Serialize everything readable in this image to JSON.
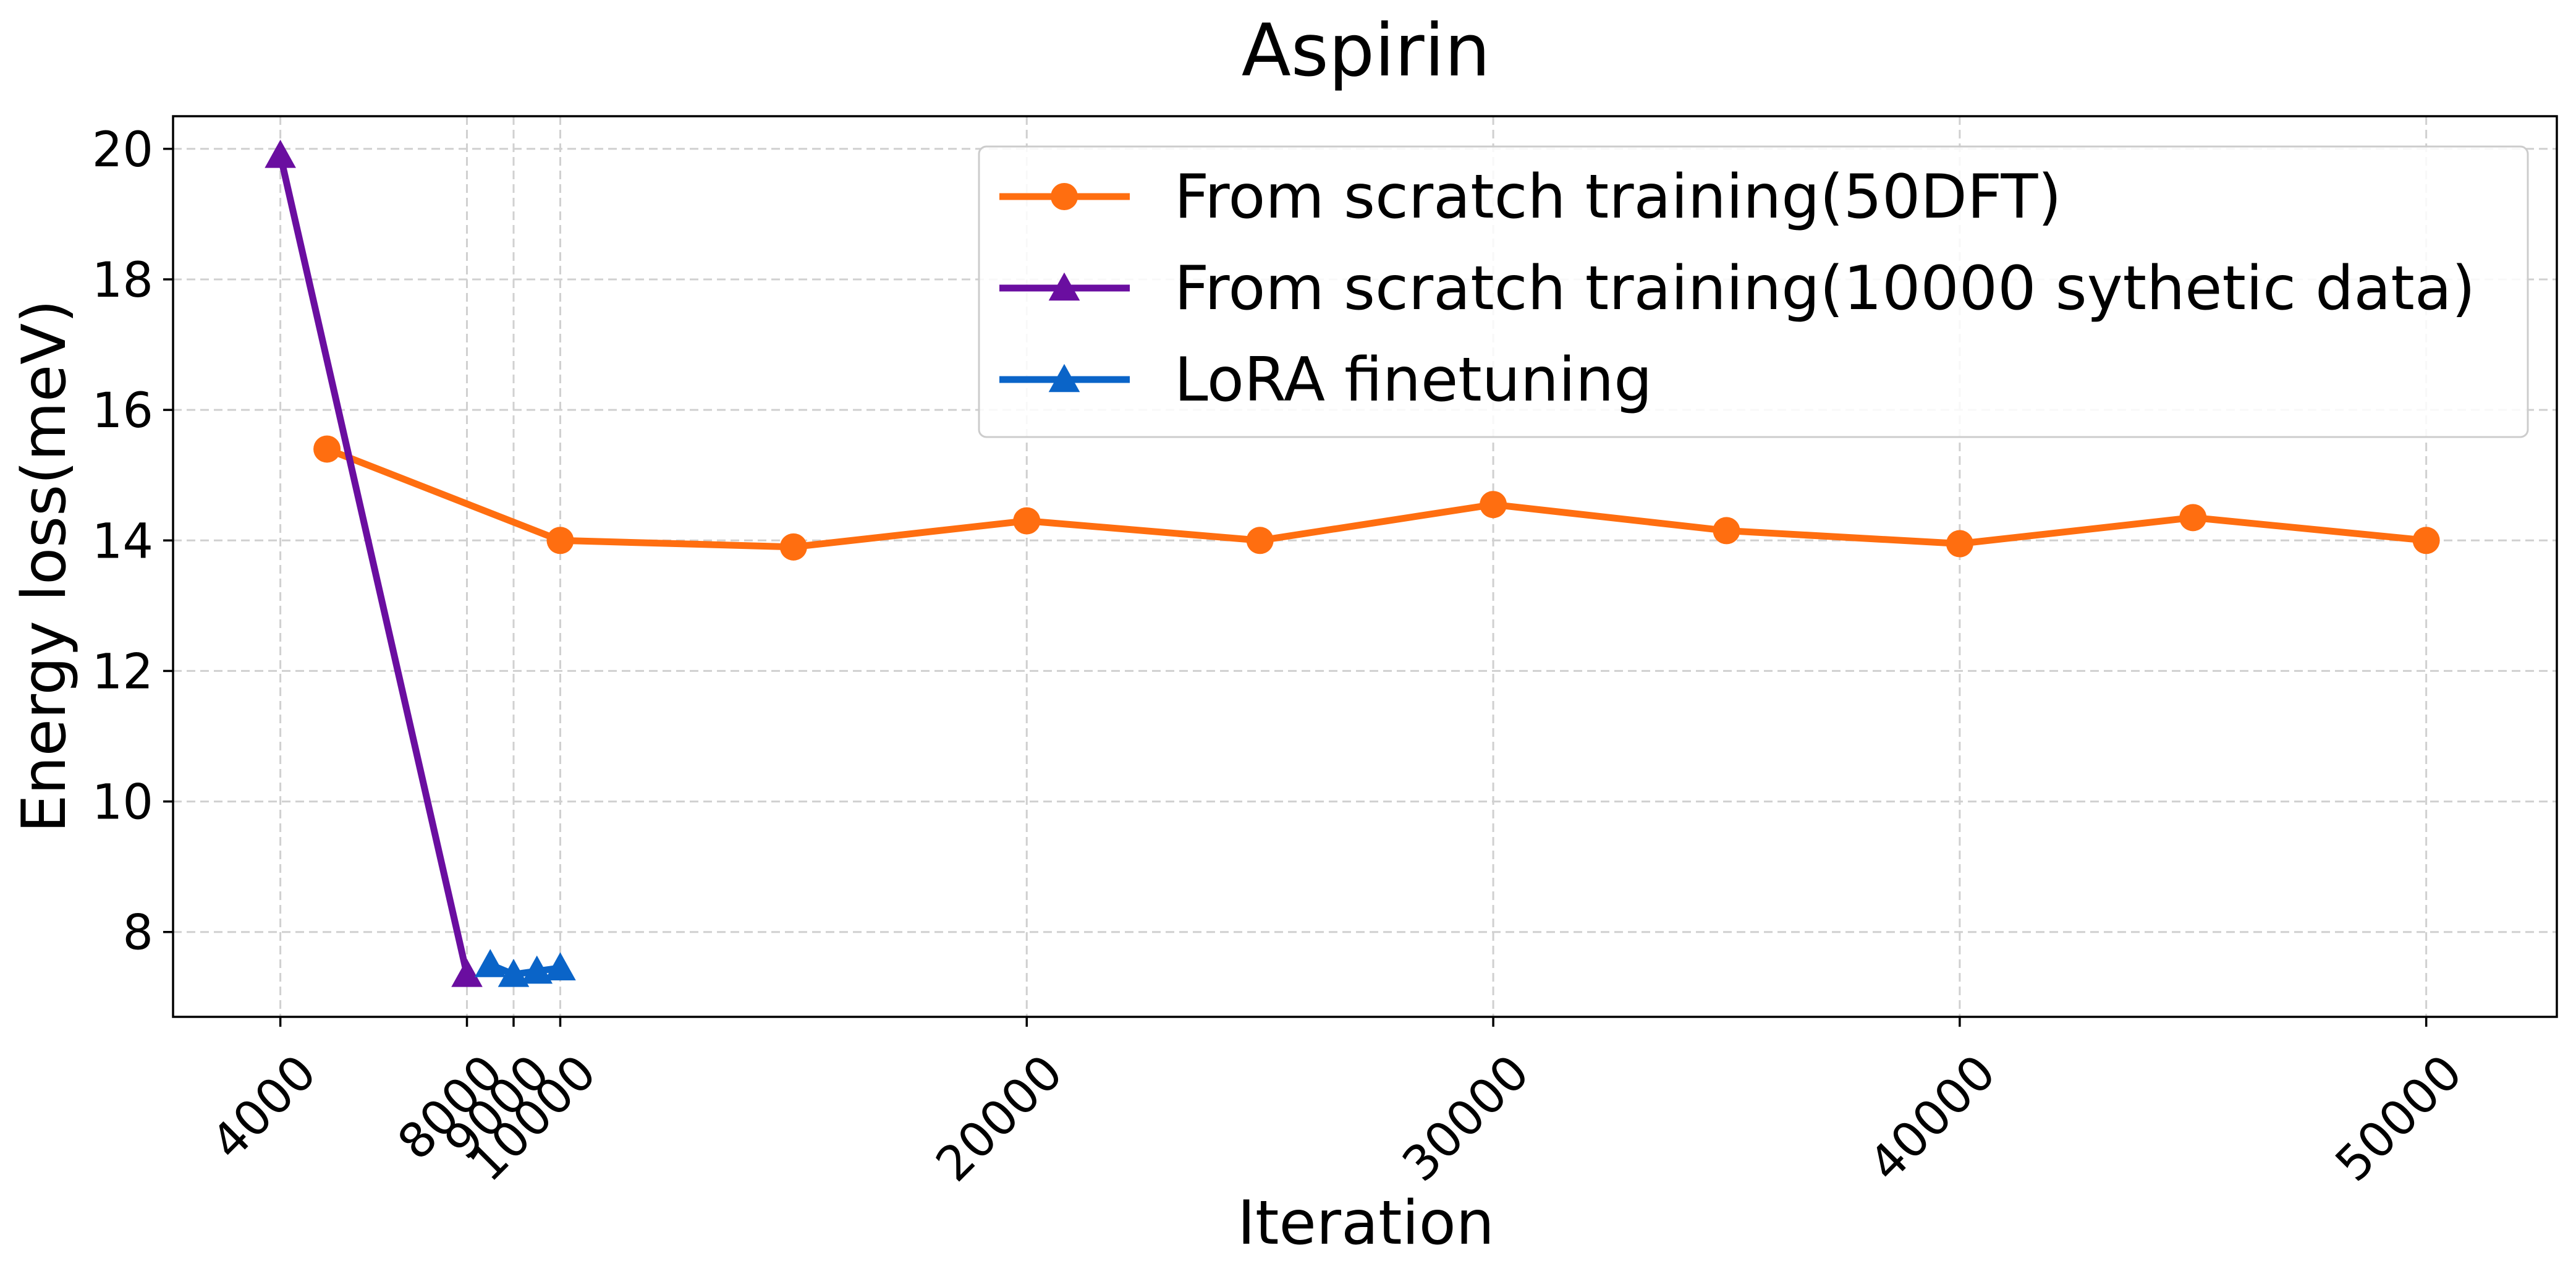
{
  "chart_data": {
    "type": "line",
    "title": "Aspirin",
    "xlabel": "Iteration",
    "ylabel": "Energy loss(meV)",
    "xlim": [
      1700,
      52800
    ],
    "ylim": [
      6.7,
      20.5
    ],
    "xticks": [
      4000,
      8000,
      9000,
      10000,
      20000,
      30000,
      40000,
      50000
    ],
    "xtick_labels": [
      "4000",
      "8000",
      "9000",
      "10000",
      "20000",
      "30000",
      "40000",
      "50000"
    ],
    "yticks": [
      8,
      10,
      12,
      14,
      16,
      18,
      20
    ],
    "ytick_labels": [
      "8",
      "10",
      "12",
      "14",
      "16",
      "18",
      "20"
    ],
    "grid": true,
    "legend_position": "top-right",
    "series": [
      {
        "name": "From scratch training(50DFT)",
        "color": "#ff6e10",
        "marker": "circle",
        "x": [
          5000,
          10000,
          15000,
          20000,
          25000,
          30000,
          35000,
          40000,
          45000,
          50000
        ],
        "y": [
          15.4,
          14.0,
          13.9,
          14.3,
          14.0,
          14.55,
          14.15,
          13.95,
          14.35,
          14.0
        ]
      },
      {
        "name": "From scratch training(10000 sythetic data)",
        "color": "#6a0ea0",
        "marker": "triangle",
        "x": [
          4000,
          8000
        ],
        "y": [
          19.9,
          7.35
        ]
      },
      {
        "name": "LoRA finetuning",
        "color": "#0a64c8",
        "marker": "triangle",
        "x": [
          8500,
          9000,
          9500,
          10000
        ],
        "y": [
          7.5,
          7.35,
          7.4,
          7.45
        ]
      }
    ]
  }
}
